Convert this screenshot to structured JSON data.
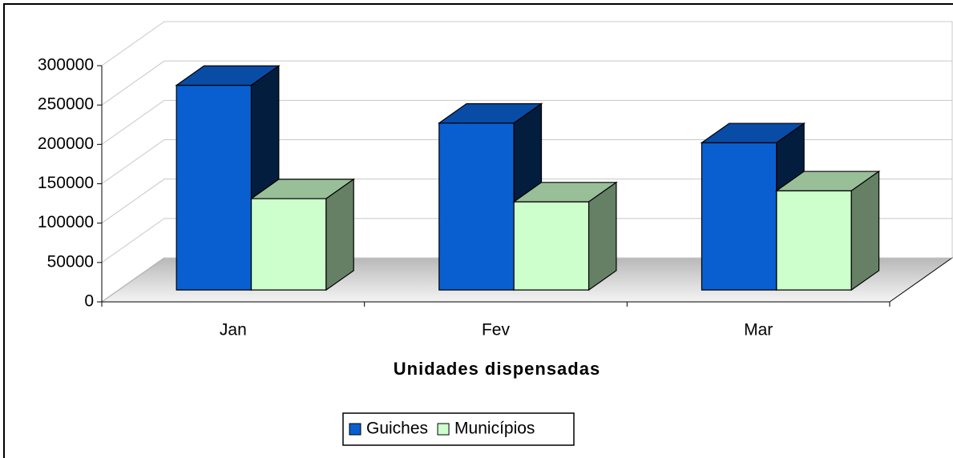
{
  "chart_data": {
    "type": "bar3d",
    "title": "Unidades dispensadas",
    "categories": [
      "Jan",
      "Fev",
      "Mar"
    ],
    "series": [
      {
        "name": "Guiches",
        "color": "#0a5fd0",
        "values": [
          260000,
          212000,
          187000
        ]
      },
      {
        "name": "Municípios",
        "color": "#ccffcc",
        "values": [
          116000,
          112000,
          126000
        ]
      }
    ],
    "ylim": [
      0,
      300000
    ],
    "yticks": [
      0,
      50000,
      100000,
      150000,
      200000,
      250000,
      300000
    ],
    "grid": true,
    "legend": "bottom"
  }
}
